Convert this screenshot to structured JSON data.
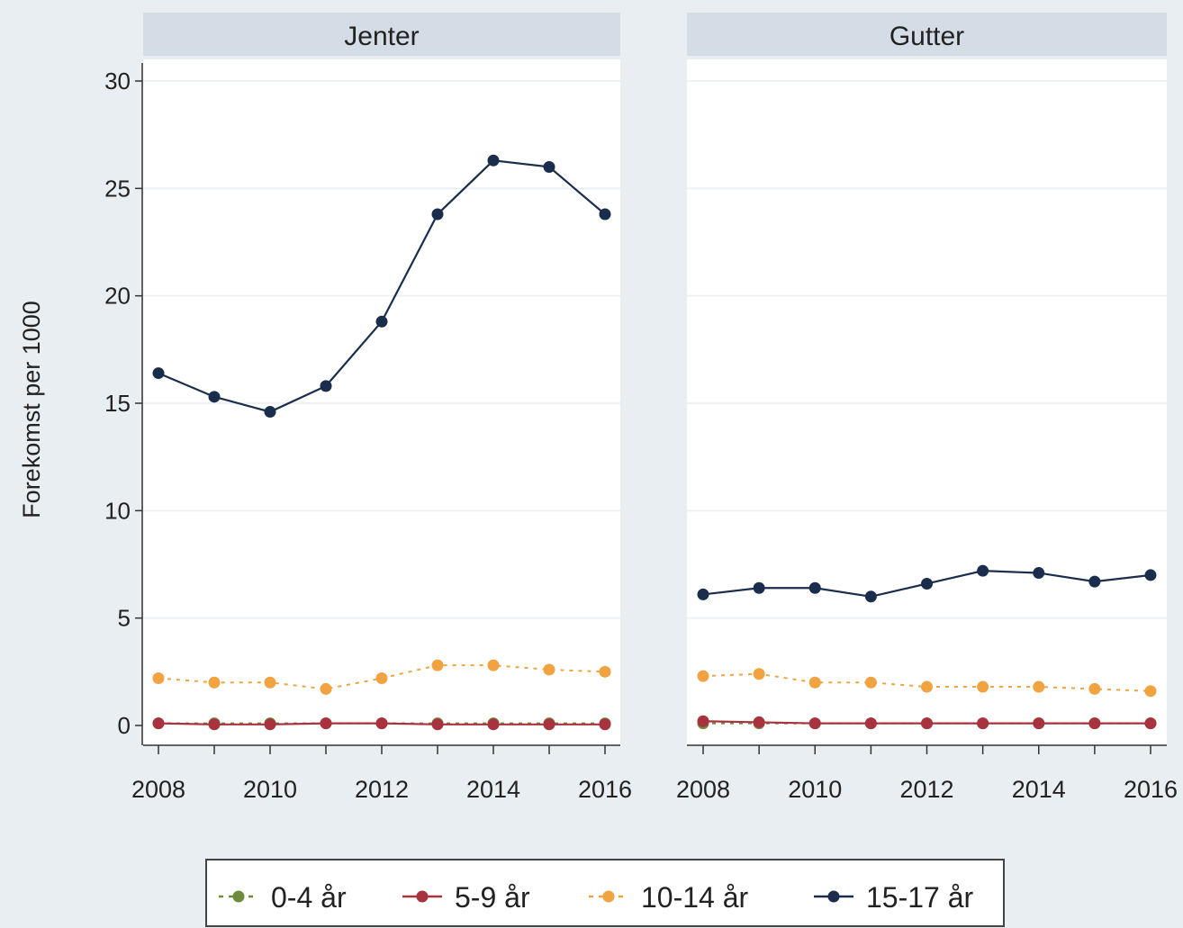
{
  "chart_data": {
    "type": "line",
    "ylabel": "Forekomst per 1000",
    "ylim": [
      0,
      30
    ],
    "yticks": [
      0,
      5,
      10,
      15,
      20,
      25,
      30
    ],
    "xlim": [
      2008,
      2016
    ],
    "xticks": [
      2008,
      2010,
      2012,
      2014,
      2016
    ],
    "x": [
      2008,
      2009,
      2010,
      2011,
      2012,
      2013,
      2014,
      2015,
      2016
    ],
    "grid": true,
    "legend_position": "bottom",
    "panels": [
      {
        "title": "Jenter",
        "series": [
          {
            "name": "0-4 år",
            "values": [
              0.1,
              0.1,
              0.1,
              0.1,
              0.1,
              0.1,
              0.1,
              0.1,
              0.1
            ]
          },
          {
            "name": "5-9 år",
            "values": [
              0.1,
              0.05,
              0.05,
              0.1,
              0.1,
              0.05,
              0.05,
              0.05,
              0.05
            ]
          },
          {
            "name": "10-14 år",
            "values": [
              2.2,
              2.0,
              2.0,
              1.7,
              2.2,
              2.8,
              2.8,
              2.6,
              2.5
            ]
          },
          {
            "name": "15-17 år",
            "values": [
              16.4,
              15.3,
              14.6,
              15.8,
              18.8,
              23.8,
              26.3,
              26.0,
              23.8
            ]
          }
        ]
      },
      {
        "title": "Gutter",
        "series": [
          {
            "name": "0-4 år",
            "values": [
              0.1,
              0.1,
              0.1,
              0.1,
              0.1,
              0.1,
              0.1,
              0.1,
              0.1
            ]
          },
          {
            "name": "5-9 år",
            "values": [
              0.2,
              0.15,
              0.1,
              0.1,
              0.1,
              0.1,
              0.1,
              0.1,
              0.1
            ]
          },
          {
            "name": "10-14 år",
            "values": [
              2.3,
              2.4,
              2.0,
              2.0,
              1.8,
              1.8,
              1.8,
              1.7,
              1.6
            ]
          },
          {
            "name": "15-17 år",
            "values": [
              6.1,
              6.4,
              6.4,
              6.0,
              6.6,
              7.2,
              7.1,
              6.7,
              7.0
            ]
          }
        ]
      }
    ],
    "legend": [
      {
        "name": "0-4 år",
        "color": "#6e8b3d",
        "dashed": true
      },
      {
        "name": "5-9 år",
        "color": "#a8323e",
        "dashed": false
      },
      {
        "name": "10-14 år",
        "color": "#f0a340",
        "dashed": true
      },
      {
        "name": "15-17 år",
        "color": "#1a2d4c",
        "dashed": false
      }
    ]
  }
}
